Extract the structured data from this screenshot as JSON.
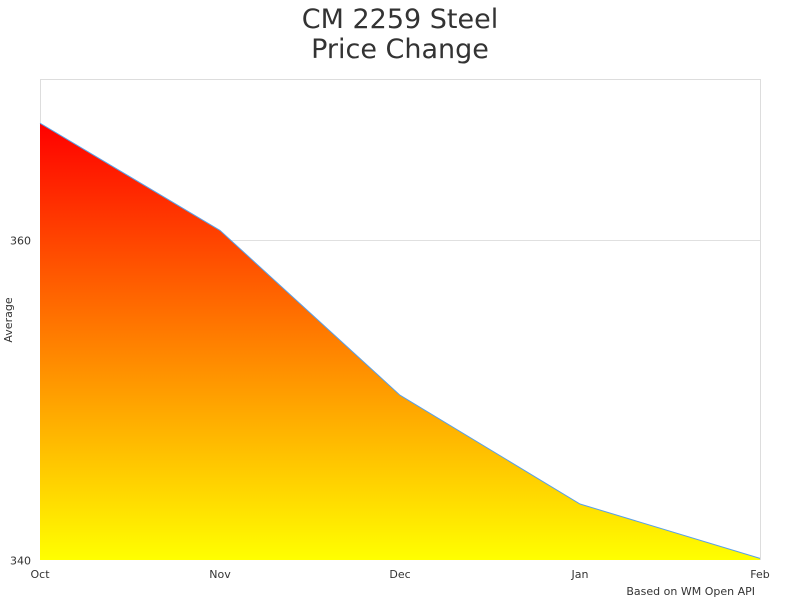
{
  "chart_data": {
    "type": "area",
    "title_lines": [
      "CM 2259 Steel",
      "Price Change"
    ],
    "ylabel": "Average",
    "xlabel": "",
    "categories": [
      "Oct",
      "Nov",
      "Dec",
      "Jan",
      "Feb"
    ],
    "values": [
      367.3,
      360.6,
      350.3,
      343.5,
      340.1
    ],
    "ylim": [
      340,
      370
    ],
    "yticks": [
      340,
      360
    ],
    "grid": true,
    "legend": "none",
    "colors": {
      "gradient_top": "#ff0000",
      "gradient_bottom": "#ffff00",
      "line": "#5aa0e6",
      "grid": "#e0e0e0"
    },
    "credit": "Based on WM Open API"
  }
}
